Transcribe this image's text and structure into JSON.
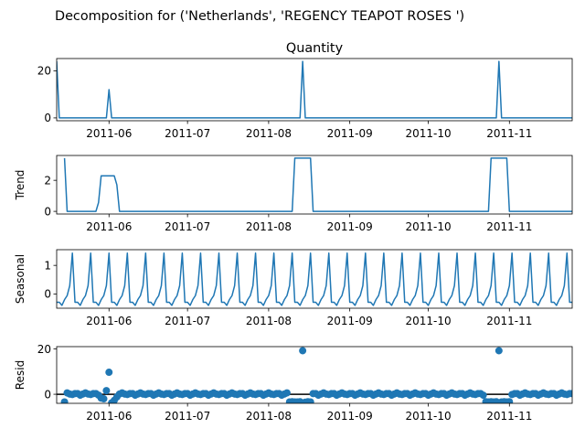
{
  "figure": {
    "suptitle": "Decomposition for ('Netherlands', 'REGENCY TEAPOT ROSES ')"
  },
  "colors": {
    "line": "#1f77b4",
    "axis": "#000000",
    "zero_line": "#000000"
  },
  "chart_data": [
    {
      "type": "line",
      "title": "Quantity",
      "ylabel": "",
      "ylim": [
        -1.2,
        25.2
      ],
      "yticks": [
        0,
        20
      ],
      "xlim": [
        "2011-05-12",
        "2011-11-25"
      ],
      "xticks": [
        "2011-06",
        "2011-07",
        "2011-08",
        "2011-09",
        "2011-10",
        "2011-11"
      ],
      "series": [
        {
          "values": [
            [
              0,
              24
            ],
            [
              1,
              0
            ],
            [
              19,
              0
            ],
            [
              20,
              12
            ],
            [
              21,
              0
            ],
            [
              93,
              0
            ],
            [
              94,
              24
            ],
            [
              95,
              0
            ],
            [
              168,
              0
            ],
            [
              169,
              24
            ],
            [
              170,
              0
            ],
            [
              208,
              0
            ],
            [
              209,
              12
            ]
          ]
        }
      ]
    },
    {
      "type": "line",
      "title": "",
      "ylabel": "Trend",
      "ylim": [
        -0.17,
        3.6
      ],
      "yticks": [
        0,
        2
      ],
      "xlim": [
        "2011-05-12",
        "2011-11-25"
      ],
      "xticks": [
        "2011-06",
        "2011-07",
        "2011-08",
        "2011-09",
        "2011-10",
        "2011-11"
      ],
      "series": [
        {
          "values": [
            [
              3,
              3.43
            ],
            [
              4,
              0
            ],
            [
              15,
              0
            ],
            [
              16,
              0.57
            ],
            [
              17,
              2.29
            ],
            [
              22,
              2.29
            ],
            [
              23,
              1.71
            ],
            [
              24,
              0
            ],
            [
              90,
              0
            ],
            [
              91,
              3.43
            ],
            [
              97,
              3.43
            ],
            [
              98,
              0
            ],
            [
              165,
              0
            ],
            [
              166,
              3.43
            ],
            [
              172,
              3.43
            ],
            [
              173,
              0
            ],
            [
              203,
              0
            ],
            [
              204,
              1.71
            ]
          ]
        }
      ]
    },
    {
      "type": "line",
      "title": "",
      "ylabel": "Seasonal",
      "ylim": [
        -0.5,
        1.55
      ],
      "yticks": [
        0,
        1
      ],
      "xlim": [
        "2011-05-12",
        "2011-11-25"
      ],
      "xticks": [
        "2011-06",
        "2011-07",
        "2011-08",
        "2011-09",
        "2011-10",
        "2011-11"
      ],
      "period": 7,
      "phase_offset": 1,
      "cycle": [
        1.43,
        -0.29,
        -0.29,
        -0.4,
        -0.2,
        -0.06,
        0.29
      ],
      "series": [
        {
          "values": []
        }
      ]
    },
    {
      "type": "scatter",
      "title": "",
      "ylabel": "Resid",
      "ylim": [
        -4.0,
        21.0
      ],
      "yticks": [
        0,
        20
      ],
      "xlim": [
        "2011-05-12",
        "2011-11-25"
      ],
      "xticks": [
        "2011-06",
        "2011-07",
        "2011-08",
        "2011-09",
        "2011-10",
        "2011-11"
      ],
      "zero_line": true,
      "range": [
        3,
        207
      ],
      "default_pattern": [
        0.3,
        0.3,
        -0.4,
        0.1,
        0.6,
        0.1,
        -0.1
      ],
      "overrides": [
        [
          3,
          -3.4
        ],
        [
          17,
          -1.7
        ],
        [
          18,
          -2.0
        ],
        [
          19,
          1.6
        ],
        [
          20,
          9.7
        ],
        [
          21,
          -3.8
        ],
        [
          22,
          -2.7
        ],
        [
          23,
          -1.2
        ],
        [
          89,
          -3.4
        ],
        [
          90,
          -3.3
        ],
        [
          91,
          -3.4
        ],
        [
          92,
          -3.4
        ],
        [
          93,
          -3.3
        ],
        [
          94,
          19.2
        ],
        [
          95,
          -3.5
        ],
        [
          96,
          -3.3
        ],
        [
          97,
          -3.4
        ],
        [
          164,
          -3.3
        ],
        [
          165,
          -3.4
        ],
        [
          166,
          -3.3
        ],
        [
          167,
          -3.4
        ],
        [
          168,
          -3.3
        ],
        [
          169,
          19.2
        ],
        [
          170,
          -3.4
        ],
        [
          171,
          -3.3
        ],
        [
          172,
          -3.4
        ],
        [
          173,
          -3.3
        ]
      ],
      "series": [
        {
          "values": []
        }
      ]
    }
  ]
}
